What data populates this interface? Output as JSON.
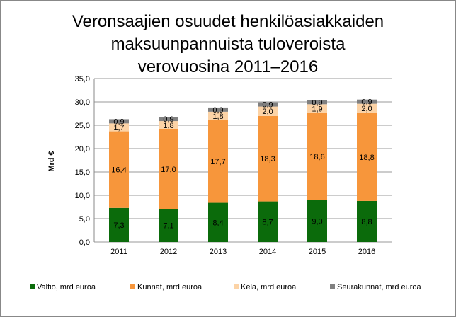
{
  "chart_data": {
    "type": "bar",
    "stacked": true,
    "title_lines": [
      "Veronsaajien osuudet henkilöasiakkaiden",
      "maksuunpannuista tuloveroista",
      "verovuosina 2011–2016"
    ],
    "xlabel": "",
    "ylabel": "Mrd €",
    "ylim": [
      0,
      35
    ],
    "yticks": [
      "0,0",
      "5,0",
      "10,0",
      "15,0",
      "20,0",
      "25,0",
      "30,0",
      "35,0"
    ],
    "grid": true,
    "legend_position": "bottom",
    "categories": [
      "2011",
      "2012",
      "2013",
      "2014",
      "2015",
      "2016"
    ],
    "series": [
      {
        "name": "Valtio, mrd euroa",
        "color": "#0b6b0b",
        "values": [
          7.3,
          7.1,
          8.4,
          8.7,
          9.0,
          8.8
        ],
        "labels": [
          "7,3",
          "7,1",
          "8,4",
          "8,7",
          "9,0",
          "8,8"
        ]
      },
      {
        "name": "Kunnat, mrd euroa",
        "color": "#f7963b",
        "values": [
          16.4,
          17.0,
          17.7,
          18.3,
          18.6,
          18.8
        ],
        "labels": [
          "16,4",
          "17,0",
          "17,7",
          "18,3",
          "18,6",
          "18,8"
        ]
      },
      {
        "name": "Kela, mrd euroa",
        "color": "#fcd3a6",
        "values": [
          1.7,
          1.8,
          1.8,
          2.0,
          1.9,
          2.0
        ],
        "labels": [
          "1,7",
          "1,8",
          "1,8",
          "2,0",
          "1,9",
          "2,0"
        ]
      },
      {
        "name": "Seurakunnat, mrd euroa",
        "color": "#808080",
        "values": [
          0.9,
          0.9,
          0.9,
          0.9,
          0.9,
          0.9
        ],
        "labels": [
          "0,9",
          "0,9",
          "0,9",
          "0,9",
          "0,9",
          "0,9"
        ]
      }
    ]
  }
}
